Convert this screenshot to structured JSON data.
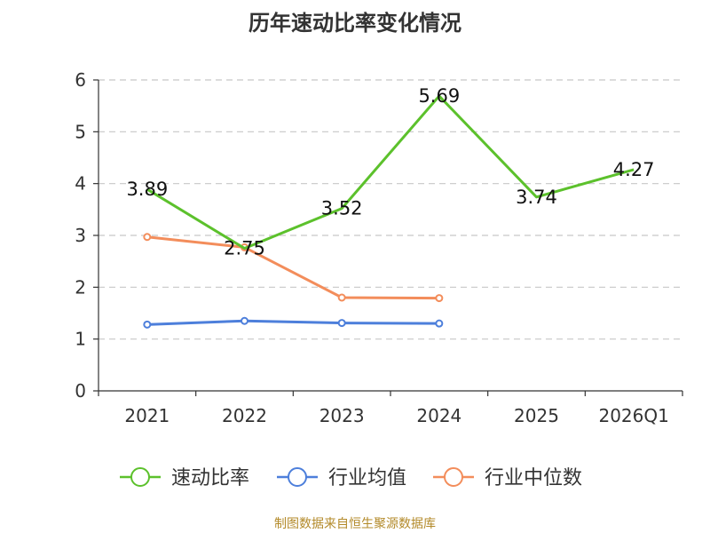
{
  "chart_data": {
    "type": "line",
    "title": "历年速动比率变化情况",
    "categories": [
      "2021",
      "2022",
      "2023",
      "2024",
      "2025",
      "2026Q1"
    ],
    "ylim": [
      0,
      6
    ],
    "yticks": [
      0,
      1,
      2,
      3,
      4,
      5,
      6
    ],
    "grid": true,
    "legend_position": "bottom",
    "series": [
      {
        "name": "速动比率",
        "color": "#5cc12c",
        "values": [
          3.89,
          2.75,
          3.52,
          5.69,
          3.74,
          4.27
        ],
        "labels": [
          "3.89",
          "2.75",
          "3.52",
          "5.69",
          "3.74",
          "4.27"
        ]
      },
      {
        "name": "行业均值",
        "color": "#4d7fdb",
        "values": [
          1.28,
          1.35,
          1.31,
          1.3,
          null,
          null
        ]
      },
      {
        "name": "行业中位数",
        "color": "#f38d5b",
        "values": [
          2.97,
          2.77,
          1.8,
          1.79,
          null,
          null
        ]
      }
    ]
  },
  "source": "制图数据来自恒生聚源数据库"
}
